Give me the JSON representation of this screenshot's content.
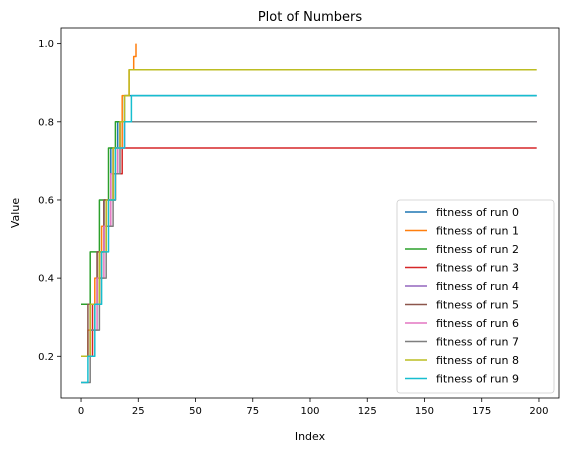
{
  "chart_data": {
    "type": "line",
    "title": "Plot of Numbers",
    "xlabel": "Index",
    "ylabel": "Value",
    "xlim": [
      -8.75,
      208.75
    ],
    "ylim": [
      0.0933,
      1.04
    ],
    "xticks": [
      0,
      25,
      50,
      75,
      100,
      125,
      150,
      175,
      200
    ],
    "yticks": [
      0.2,
      0.4,
      0.6,
      0.8,
      1.0
    ],
    "xtick_labels": [
      "0",
      "25",
      "50",
      "75",
      "100",
      "125",
      "150",
      "175",
      "200"
    ],
    "ytick_labels": [
      "0.2",
      "0.4",
      "0.6",
      "0.8",
      "1.0"
    ],
    "grid": false,
    "legend_position": "lower-right",
    "series": [
      {
        "name": "fitness of run 0",
        "color": "#1f77b4",
        "steps": [
          [
            0,
            0.2
          ],
          [
            4,
            0.333
          ],
          [
            8,
            0.467
          ],
          [
            10,
            0.6
          ],
          [
            13,
            0.733
          ],
          [
            16,
            0.8
          ],
          [
            19,
            0.867
          ],
          [
            199,
            0.867
          ]
        ]
      },
      {
        "name": "fitness of run 1",
        "color": "#ff7f0e",
        "steps": [
          [
            0,
            0.2
          ],
          [
            3,
            0.267
          ],
          [
            6,
            0.4
          ],
          [
            9,
            0.533
          ],
          [
            12,
            0.6
          ],
          [
            15,
            0.733
          ],
          [
            18,
            0.867
          ],
          [
            21,
            0.933
          ],
          [
            23,
            0.967
          ],
          [
            24,
            1.0
          ]
        ]
      },
      {
        "name": "fitness of run 2",
        "color": "#2ca02c",
        "steps": [
          [
            0,
            0.333
          ],
          [
            4,
            0.467
          ],
          [
            8,
            0.6
          ],
          [
            12,
            0.733
          ],
          [
            15,
            0.8
          ],
          [
            199,
            0.8
          ]
        ]
      },
      {
        "name": "fitness of run 3",
        "color": "#d62728",
        "steps": [
          [
            0,
            0.2
          ],
          [
            5,
            0.333
          ],
          [
            8,
            0.467
          ],
          [
            11,
            0.6
          ],
          [
            15,
            0.667
          ],
          [
            18,
            0.733
          ],
          [
            199,
            0.733
          ]
        ]
      },
      {
        "name": "fitness of run 4",
        "color": "#9467bd",
        "steps": [
          [
            0,
            0.2
          ],
          [
            4,
            0.333
          ],
          [
            7,
            0.467
          ],
          [
            10,
            0.6
          ],
          [
            13,
            0.667
          ],
          [
            16,
            0.733
          ],
          [
            19,
            0.8
          ],
          [
            199,
            0.8
          ]
        ]
      },
      {
        "name": "fitness of run 5",
        "color": "#8c564b",
        "steps": [
          [
            0,
            0.2
          ],
          [
            3,
            0.333
          ],
          [
            7,
            0.467
          ],
          [
            10,
            0.6
          ],
          [
            14,
            0.733
          ],
          [
            17,
            0.8
          ],
          [
            199,
            0.8
          ]
        ]
      },
      {
        "name": "fitness of run 6",
        "color": "#e377c2",
        "steps": [
          [
            0,
            0.2
          ],
          [
            4,
            0.267
          ],
          [
            7,
            0.4
          ],
          [
            10,
            0.533
          ],
          [
            13,
            0.667
          ],
          [
            16,
            0.733
          ],
          [
            19,
            0.8
          ],
          [
            199,
            0.8
          ]
        ]
      },
      {
        "name": "fitness of run 7",
        "color": "#7f7f7f",
        "steps": [
          [
            0,
            0.133
          ],
          [
            4,
            0.267
          ],
          [
            8,
            0.4
          ],
          [
            11,
            0.533
          ],
          [
            14,
            0.667
          ],
          [
            17,
            0.8
          ],
          [
            199,
            0.8
          ]
        ]
      },
      {
        "name": "fitness of run 8",
        "color": "#bcbd22",
        "steps": [
          [
            0,
            0.2
          ],
          [
            4,
            0.333
          ],
          [
            8,
            0.467
          ],
          [
            11,
            0.6
          ],
          [
            14,
            0.733
          ],
          [
            17,
            0.8
          ],
          [
            19,
            0.867
          ],
          [
            21,
            0.933
          ],
          [
            199,
            0.933
          ]
        ]
      },
      {
        "name": "fitness of run 9",
        "color": "#17becf",
        "steps": [
          [
            0,
            0.133
          ],
          [
            3,
            0.2
          ],
          [
            6,
            0.333
          ],
          [
            9,
            0.467
          ],
          [
            12,
            0.6
          ],
          [
            15,
            0.733
          ],
          [
            19,
            0.8
          ],
          [
            22,
            0.867
          ],
          [
            199,
            0.867
          ]
        ]
      }
    ]
  }
}
